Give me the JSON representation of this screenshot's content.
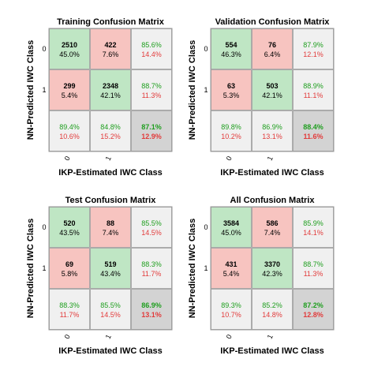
{
  "colors": {
    "correct": "#bfe6c4",
    "incorrect": "#f7c4c0",
    "summary": "#f0f0f0",
    "total": "#d3d3d3",
    "green_text": "#1e9e1e",
    "red_text": "#e23b3b",
    "frame": "#9a9a9a",
    "text": "#000000"
  },
  "chart_data": [
    {
      "type": "heatmap",
      "title": "Training Confusion Matrix",
      "xlabel": "IKP-Estimated IWC Class",
      "ylabel": "NN-Predicted IWC Class",
      "classes": [
        "0",
        "1"
      ],
      "counts": [
        [
          2510,
          422
        ],
        [
          299,
          2348
        ]
      ],
      "count_percents": [
        [
          "45.0%",
          "7.6%"
        ],
        [
          "5.4%",
          "42.1%"
        ]
      ],
      "row_summary": [
        [
          "85.6%",
          "14.4%"
        ],
        [
          "88.7%",
          "11.3%"
        ]
      ],
      "col_summary": [
        [
          "89.4%",
          "10.6%"
        ],
        [
          "84.8%",
          "15.2%"
        ]
      ],
      "total": [
        "87.1%",
        "12.9%"
      ]
    },
    {
      "type": "heatmap",
      "title": "Validation Confusion Matrix",
      "xlabel": "IKP-Estimated IWC Class",
      "ylabel": "NN-Predicted IWC Class",
      "classes": [
        "0",
        "1"
      ],
      "counts": [
        [
          554,
          76
        ],
        [
          63,
          503
        ]
      ],
      "count_percents": [
        [
          "46.3%",
          "6.4%"
        ],
        [
          "5.3%",
          "42.1%"
        ]
      ],
      "row_summary": [
        [
          "87.9%",
          "12.1%"
        ],
        [
          "88.9%",
          "11.1%"
        ]
      ],
      "col_summary": [
        [
          "89.8%",
          "10.2%"
        ],
        [
          "86.9%",
          "13.1%"
        ]
      ],
      "total": [
        "88.4%",
        "11.6%"
      ]
    },
    {
      "type": "heatmap",
      "title": "Test Confusion Matrix",
      "xlabel": "IKP-Estimated IWC Class",
      "ylabel": "NN-Predicted IWC Class",
      "classes": [
        "0",
        "1"
      ],
      "counts": [
        [
          520,
          88
        ],
        [
          69,
          519
        ]
      ],
      "count_percents": [
        [
          "43.5%",
          "7.4%"
        ],
        [
          "5.8%",
          "43.4%"
        ]
      ],
      "row_summary": [
        [
          "85.5%",
          "14.5%"
        ],
        [
          "88.3%",
          "11.7%"
        ]
      ],
      "col_summary": [
        [
          "88.3%",
          "11.7%"
        ],
        [
          "85.5%",
          "14.5%"
        ]
      ],
      "total": [
        "86.9%",
        "13.1%"
      ]
    },
    {
      "type": "heatmap",
      "title": "All Confusion Matrix",
      "xlabel": "IKP-Estimated IWC Class",
      "ylabel": "NN-Predicted IWC Class",
      "classes": [
        "0",
        "1"
      ],
      "counts": [
        [
          3584,
          586
        ],
        [
          431,
          3370
        ]
      ],
      "count_percents": [
        [
          "45.0%",
          "7.4%"
        ],
        [
          "5.4%",
          "42.3%"
        ]
      ],
      "row_summary": [
        [
          "85.9%",
          "14.1%"
        ],
        [
          "88.7%",
          "11.3%"
        ]
      ],
      "col_summary": [
        [
          "89.3%",
          "10.7%"
        ],
        [
          "85.2%",
          "14.8%"
        ]
      ],
      "total": [
        "87.2%",
        "12.8%"
      ]
    }
  ]
}
